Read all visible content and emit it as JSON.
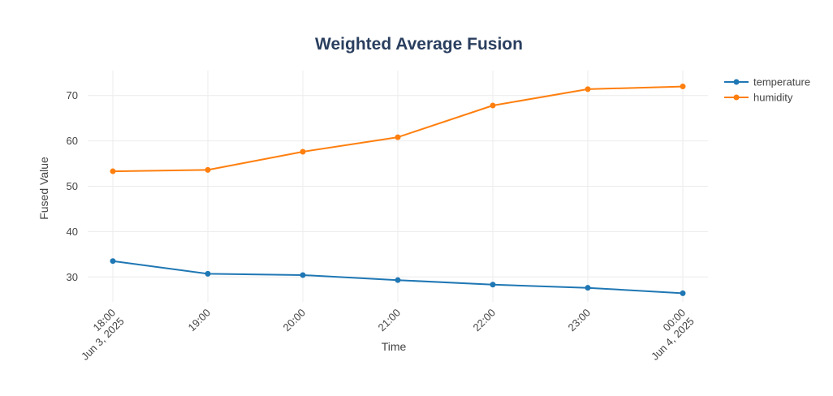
{
  "chart_data": {
    "type": "line",
    "title": "Weighted Average Fusion",
    "xlabel": "Time",
    "ylabel": "Fused Value",
    "x": [
      "2025-06-03 18:00",
      "2025-06-03 19:00",
      "2025-06-03 20:00",
      "2025-06-03 21:00",
      "2025-06-03 22:00",
      "2025-06-03 23:00",
      "2025-06-04 00:00"
    ],
    "x_tick_labels": [
      [
        "18:00",
        "Jun 3, 2025"
      ],
      [
        "19:00"
      ],
      [
        "20:00"
      ],
      [
        "21:00"
      ],
      [
        "22:00"
      ],
      [
        "23:00"
      ],
      [
        "00:00",
        "Jun 4, 2025"
      ]
    ],
    "y_ticks": [
      30,
      40,
      50,
      60,
      70
    ],
    "ylim": [
      24.5,
      75.5
    ],
    "grid": true,
    "legend_position": "top-right",
    "series": [
      {
        "name": "temperature",
        "color": "#1f77b4",
        "values": [
          33.5,
          30.7,
          30.4,
          29.3,
          28.3,
          27.6,
          26.4
        ]
      },
      {
        "name": "humidity",
        "color": "#ff7f0e",
        "values": [
          53.3,
          53.6,
          57.6,
          60.8,
          67.8,
          71.4,
          72.0
        ]
      }
    ]
  }
}
